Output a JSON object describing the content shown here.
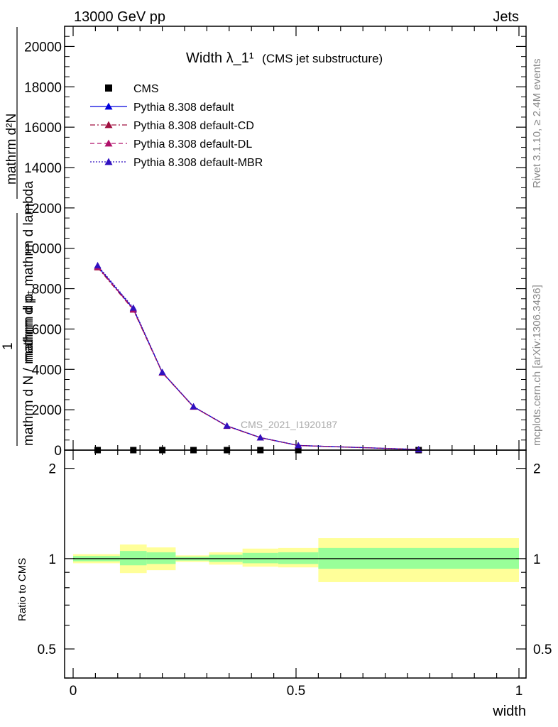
{
  "header": {
    "left": "13000 GeV pp",
    "right": "Jets"
  },
  "side": {
    "rivet": "Rivet 3.1.10, ≥ 2.4M events",
    "mcplots": "mcplots.cern.ch [arXiv:1306.3436]"
  },
  "watermark": "CMS_2021_I1920187",
  "main_ylabel": {
    "top_num": "mathrm d²N",
    "top_den": "mathrm d pₜ mathrm d lambda",
    "one": "1",
    "bottom_den": "mathrm d N / mathrm d pₜ"
  },
  "chart_data": [
    {
      "type": "line",
      "title": "Width λ_1¹",
      "subtitle": "(CMS jet substructure)",
      "ylim": [
        0,
        21000
      ],
      "yticks": [
        0,
        2000,
        4000,
        6000,
        8000,
        10000,
        12000,
        14000,
        16000,
        18000,
        20000
      ],
      "ytick_labels": [
        "0",
        "2000",
        "4000",
        "6000",
        "8000",
        "10000",
        "12000",
        "14000",
        "16000",
        "18000",
        "20000"
      ],
      "xlim": [
        0,
        1
      ],
      "legend_position": "top-left",
      "series": [
        {
          "name": "CMS",
          "style": "points",
          "color": "#000000",
          "x": [
            0.055,
            0.135,
            0.2,
            0.27,
            0.345,
            0.42,
            0.505,
            0.775
          ],
          "values": [
            0,
            0,
            0,
            0,
            0,
            0,
            0,
            0
          ]
        },
        {
          "name": "Pythia 8.308 default",
          "style": "solid",
          "color": "#0000dd",
          "x": [
            0.055,
            0.135,
            0.2,
            0.27,
            0.345,
            0.42,
            0.505,
            0.775
          ],
          "values": [
            9100,
            7000,
            3850,
            2150,
            1200,
            620,
            230,
            30
          ]
        },
        {
          "name": "Pythia 8.308 default-CD",
          "style": "dashdot",
          "color": "#a01040",
          "x": [
            0.055,
            0.135,
            0.2,
            0.27,
            0.345,
            0.42,
            0.505,
            0.775
          ],
          "values": [
            9050,
            6950,
            3830,
            2140,
            1190,
            615,
            228,
            30
          ]
        },
        {
          "name": "Pythia 8.308 default-DL",
          "style": "dashed",
          "color": "#b0106a",
          "x": [
            0.055,
            0.135,
            0.2,
            0.27,
            0.345,
            0.42,
            0.505,
            0.775
          ],
          "values": [
            9080,
            6980,
            3840,
            2145,
            1195,
            618,
            229,
            30
          ]
        },
        {
          "name": "Pythia 8.308 default-MBR",
          "style": "dotted",
          "color": "#3010c0",
          "x": [
            0.055,
            0.135,
            0.2,
            0.27,
            0.345,
            0.42,
            0.505,
            0.775
          ],
          "values": [
            9150,
            7050,
            3860,
            2160,
            1205,
            622,
            231,
            30
          ]
        }
      ]
    },
    {
      "type": "area",
      "ylabel": "Ratio to CMS",
      "xlabel": "width",
      "xlim": [
        0,
        1
      ],
      "ylim": [
        0.4,
        2.3
      ],
      "yscale": "log",
      "yticks": [
        0.5,
        1,
        2
      ],
      "ytick_labels": [
        "0.5",
        "1",
        "2"
      ],
      "xticks": [
        0,
        0.5,
        1
      ],
      "xtick_labels": [
        "0",
        "0.5",
        "1"
      ],
      "bands": {
        "x_edges": [
          0.0,
          0.105,
          0.165,
          0.23,
          0.305,
          0.38,
          0.46,
          0.55,
          1.0
        ],
        "inner_low": [
          0.98,
          0.95,
          0.96,
          0.985,
          0.975,
          0.965,
          0.96,
          0.925
        ],
        "inner_high": [
          1.02,
          1.06,
          1.05,
          1.015,
          1.03,
          1.045,
          1.05,
          1.085
        ],
        "outer_low": [
          0.965,
          0.895,
          0.915,
          0.975,
          0.955,
          0.94,
          0.935,
          0.835
        ],
        "outer_high": [
          1.035,
          1.115,
          1.09,
          1.025,
          1.05,
          1.08,
          1.085,
          1.17
        ],
        "inner_color": "#99ff99",
        "outer_color": "#ffff99"
      },
      "reference_line": 1
    }
  ]
}
